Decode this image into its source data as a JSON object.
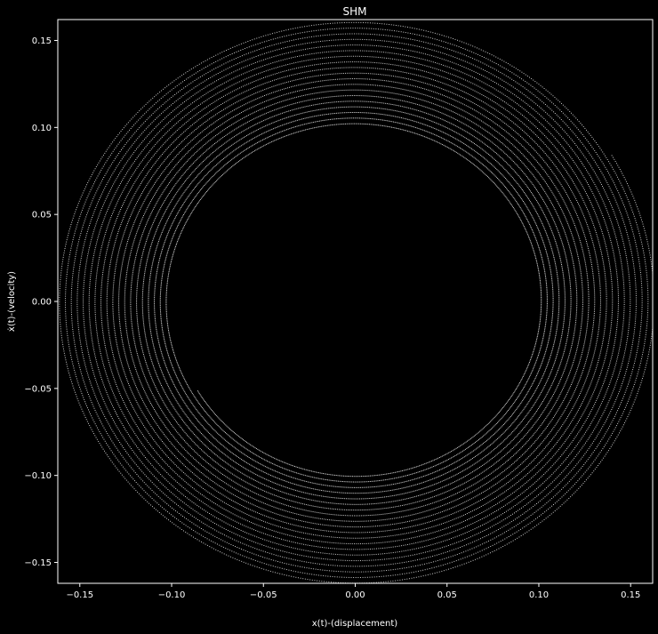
{
  "chart_data": {
    "type": "scatter",
    "title": "SHM",
    "xlabel": "x(t)-(displacement)",
    "ylabel": "ẋ(t)-(velocity)",
    "xlim": [
      -0.162,
      0.162
    ],
    "ylim": [
      -0.162,
      0.162
    ],
    "xticks": [
      -0.15,
      -0.1,
      -0.05,
      0.0,
      0.05,
      0.1,
      0.15
    ],
    "xtick_labels": [
      "−0.15",
      "−0.10",
      "−0.05",
      "0.00",
      "0.05",
      "0.10",
      "0.15"
    ],
    "yticks": [
      -0.15,
      -0.1,
      -0.05,
      0.0,
      0.05,
      0.1,
      0.15
    ],
    "ytick_labels": [
      "−0.15",
      "−0.10",
      "−0.05",
      "0.00",
      "0.05",
      "0.10",
      "0.15"
    ],
    "grid": false,
    "colors": {
      "background": "#000000",
      "points": "#ffffff",
      "axes": "#ffffff"
    },
    "spiral": {
      "start_radius": 0.1,
      "end_radius": 0.163,
      "turns": 19.5,
      "end_point": [
        0.14,
        0.084
      ]
    }
  }
}
